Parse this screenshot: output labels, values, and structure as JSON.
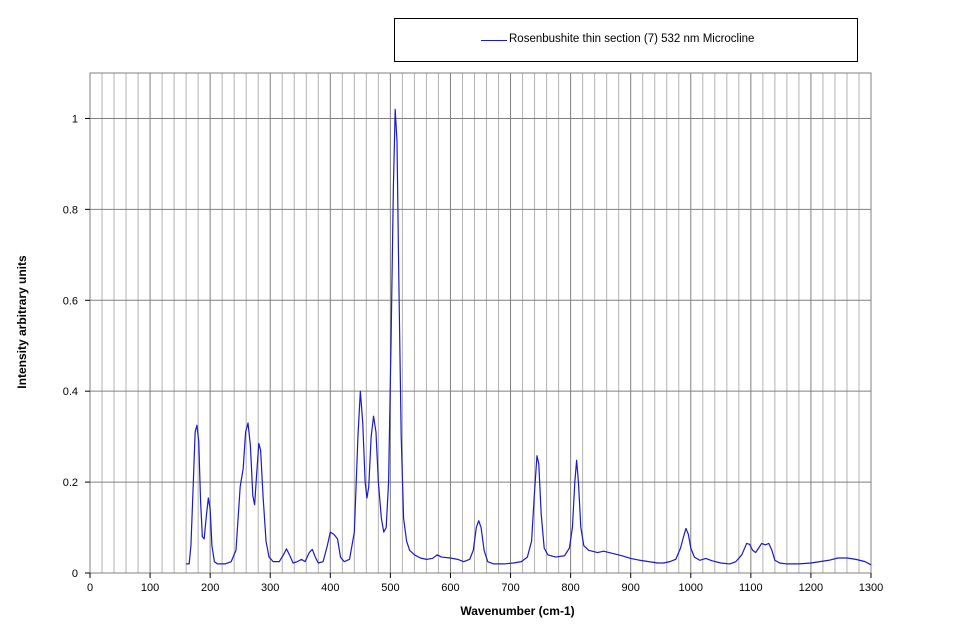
{
  "chart_data": {
    "type": "line",
    "title": "",
    "xlabel": "Wavenumber (cm-1)",
    "ylabel": "Intensity  arbitrary units",
    "xlim": [
      0,
      1300
    ],
    "ylim": [
      0,
      1.1
    ],
    "x_ticks": [
      0,
      100,
      200,
      300,
      400,
      500,
      600,
      700,
      800,
      900,
      1000,
      1100,
      1200,
      1300
    ],
    "y_ticks": [
      0,
      0.2,
      0.4,
      0.6,
      0.8,
      1
    ],
    "x_tick_labels": [
      "0",
      "100",
      "200",
      "300",
      "400",
      "500",
      "600",
      "700",
      "800",
      "900",
      "1000",
      "1100",
      "1200",
      "1300"
    ],
    "y_tick_labels": [
      "0",
      "0.2",
      "0.4",
      "0.6",
      "0.8",
      "1"
    ],
    "grid": true,
    "legend_position": "top-right",
    "series": [
      {
        "name": "Rosenbushite  thin section (7) 532 nm  Microcline",
        "color": "#1a1acc",
        "points": [
          [
            160,
            0.02
          ],
          [
            165,
            0.02
          ],
          [
            168,
            0.06
          ],
          [
            172,
            0.2
          ],
          [
            175,
            0.31
          ],
          [
            178,
            0.325
          ],
          [
            181,
            0.29
          ],
          [
            184,
            0.16
          ],
          [
            187,
            0.08
          ],
          [
            190,
            0.075
          ],
          [
            194,
            0.13
          ],
          [
            197,
            0.165
          ],
          [
            200,
            0.14
          ],
          [
            203,
            0.06
          ],
          [
            207,
            0.025
          ],
          [
            212,
            0.02
          ],
          [
            225,
            0.02
          ],
          [
            235,
            0.025
          ],
          [
            243,
            0.05
          ],
          [
            250,
            0.19
          ],
          [
            255,
            0.23
          ],
          [
            259,
            0.31
          ],
          [
            263,
            0.33
          ],
          [
            267,
            0.28
          ],
          [
            271,
            0.17
          ],
          [
            274,
            0.15
          ],
          [
            277,
            0.21
          ],
          [
            281,
            0.285
          ],
          [
            284,
            0.27
          ],
          [
            288,
            0.17
          ],
          [
            293,
            0.07
          ],
          [
            298,
            0.035
          ],
          [
            305,
            0.025
          ],
          [
            315,
            0.025
          ],
          [
            322,
            0.04
          ],
          [
            327,
            0.053
          ],
          [
            332,
            0.04
          ],
          [
            338,
            0.022
          ],
          [
            345,
            0.025
          ],
          [
            352,
            0.03
          ],
          [
            358,
            0.025
          ],
          [
            365,
            0.045
          ],
          [
            370,
            0.052
          ],
          [
            375,
            0.035
          ],
          [
            380,
            0.022
          ],
          [
            388,
            0.025
          ],
          [
            395,
            0.06
          ],
          [
            400,
            0.09
          ],
          [
            406,
            0.085
          ],
          [
            412,
            0.075
          ],
          [
            417,
            0.035
          ],
          [
            423,
            0.025
          ],
          [
            432,
            0.03
          ],
          [
            440,
            0.09
          ],
          [
            446,
            0.3
          ],
          [
            450,
            0.4
          ],
          [
            454,
            0.33
          ],
          [
            458,
            0.2
          ],
          [
            461,
            0.165
          ],
          [
            464,
            0.19
          ],
          [
            468,
            0.3
          ],
          [
            472,
            0.345
          ],
          [
            476,
            0.31
          ],
          [
            480,
            0.2
          ],
          [
            485,
            0.12
          ],
          [
            489,
            0.09
          ],
          [
            493,
            0.1
          ],
          [
            497,
            0.2
          ],
          [
            501,
            0.5
          ],
          [
            505,
            0.85
          ],
          [
            508,
            1.02
          ],
          [
            511,
            0.95
          ],
          [
            514,
            0.65
          ],
          [
            518,
            0.3
          ],
          [
            522,
            0.12
          ],
          [
            527,
            0.07
          ],
          [
            532,
            0.05
          ],
          [
            540,
            0.04
          ],
          [
            550,
            0.033
          ],
          [
            560,
            0.03
          ],
          [
            570,
            0.032
          ],
          [
            578,
            0.04
          ],
          [
            585,
            0.035
          ],
          [
            600,
            0.033
          ],
          [
            612,
            0.03
          ],
          [
            622,
            0.025
          ],
          [
            632,
            0.03
          ],
          [
            638,
            0.05
          ],
          [
            643,
            0.1
          ],
          [
            647,
            0.115
          ],
          [
            651,
            0.1
          ],
          [
            656,
            0.05
          ],
          [
            662,
            0.025
          ],
          [
            672,
            0.02
          ],
          [
            690,
            0.02
          ],
          [
            705,
            0.022
          ],
          [
            718,
            0.025
          ],
          [
            728,
            0.035
          ],
          [
            735,
            0.07
          ],
          [
            740,
            0.18
          ],
          [
            744,
            0.258
          ],
          [
            747,
            0.24
          ],
          [
            751,
            0.13
          ],
          [
            756,
            0.055
          ],
          [
            762,
            0.04
          ],
          [
            775,
            0.035
          ],
          [
            790,
            0.038
          ],
          [
            798,
            0.055
          ],
          [
            803,
            0.1
          ],
          [
            807,
            0.2
          ],
          [
            810,
            0.248
          ],
          [
            813,
            0.2
          ],
          [
            817,
            0.1
          ],
          [
            822,
            0.06
          ],
          [
            830,
            0.05
          ],
          [
            845,
            0.045
          ],
          [
            855,
            0.048
          ],
          [
            870,
            0.043
          ],
          [
            885,
            0.038
          ],
          [
            900,
            0.032
          ],
          [
            915,
            0.028
          ],
          [
            930,
            0.025
          ],
          [
            945,
            0.022
          ],
          [
            955,
            0.022
          ],
          [
            965,
            0.025
          ],
          [
            975,
            0.03
          ],
          [
            983,
            0.055
          ],
          [
            988,
            0.08
          ],
          [
            992,
            0.098
          ],
          [
            996,
            0.085
          ],
          [
            1000,
            0.055
          ],
          [
            1006,
            0.035
          ],
          [
            1015,
            0.028
          ],
          [
            1025,
            0.032
          ],
          [
            1035,
            0.027
          ],
          [
            1050,
            0.022
          ],
          [
            1065,
            0.02
          ],
          [
            1075,
            0.025
          ],
          [
            1085,
            0.04
          ],
          [
            1093,
            0.065
          ],
          [
            1098,
            0.063
          ],
          [
            1103,
            0.05
          ],
          [
            1108,
            0.045
          ],
          [
            1113,
            0.055
          ],
          [
            1118,
            0.065
          ],
          [
            1124,
            0.062
          ],
          [
            1130,
            0.065
          ],
          [
            1135,
            0.05
          ],
          [
            1140,
            0.028
          ],
          [
            1148,
            0.022
          ],
          [
            1160,
            0.02
          ],
          [
            1180,
            0.02
          ],
          [
            1200,
            0.022
          ],
          [
            1215,
            0.025
          ],
          [
            1230,
            0.028
          ],
          [
            1245,
            0.033
          ],
          [
            1260,
            0.033
          ],
          [
            1275,
            0.03
          ],
          [
            1290,
            0.025
          ],
          [
            1300,
            0.018
          ]
        ]
      }
    ]
  }
}
